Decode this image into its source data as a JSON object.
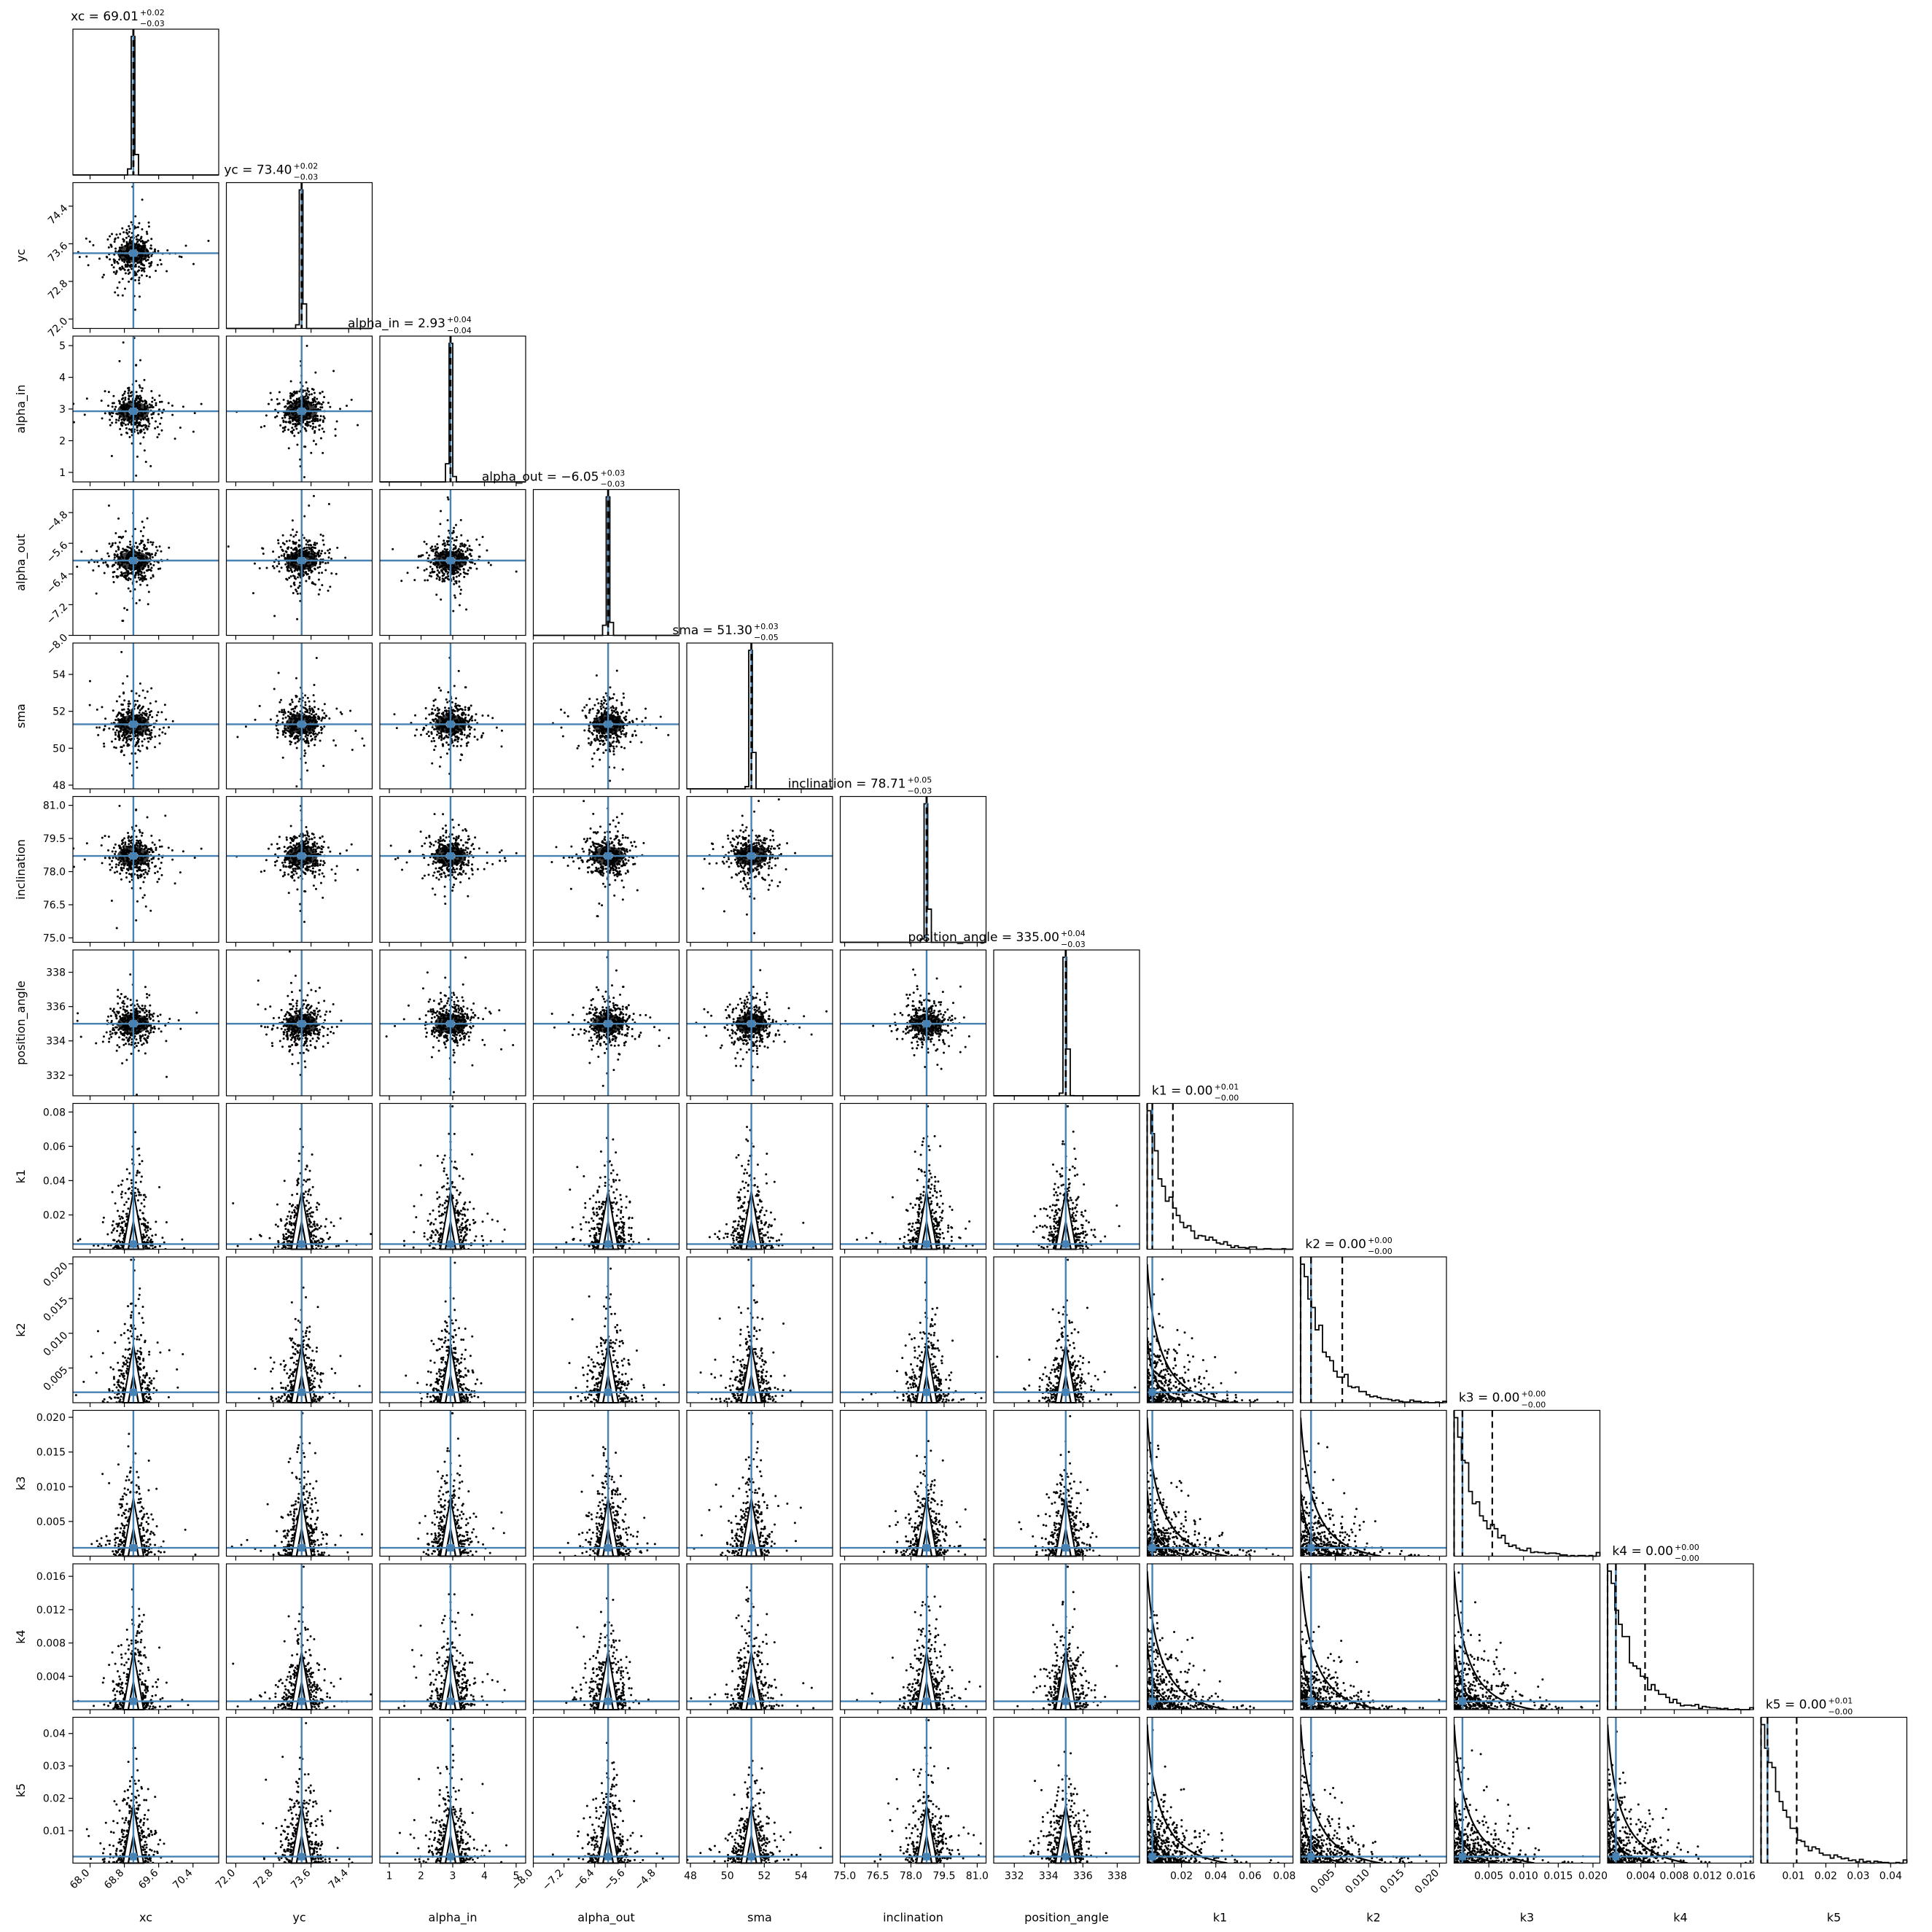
{
  "chart_data": {
    "type": "corner",
    "parameters": [
      {
        "label": "xc",
        "median": "69.01",
        "plus": "+0.02",
        "minus": "−0.03",
        "truth": 69.01,
        "range": [
          67.6,
          71.0
        ],
        "ticks": [
          "68.0",
          "68.8",
          "69.6",
          "70.4"
        ],
        "tick_values": [
          68.0,
          68.8,
          69.6,
          70.4
        ],
        "rotate": true
      },
      {
        "label": "yc",
        "median": "73.40",
        "plus": "+0.02",
        "minus": "−0.03",
        "truth": 73.4,
        "range": [
          71.8,
          74.9
        ],
        "ticks": [
          "72.0",
          "72.8",
          "73.6",
          "74.4"
        ],
        "tick_values": [
          72.0,
          72.8,
          73.6,
          74.4
        ],
        "rotate": true
      },
      {
        "label": "alpha_in",
        "median": "2.93",
        "plus": "+0.04",
        "minus": "−0.04",
        "truth": 2.93,
        "range": [
          0.7,
          5.3
        ],
        "ticks": [
          "1",
          "2",
          "3",
          "4",
          "5"
        ],
        "tick_values": [
          1,
          2,
          3,
          4,
          5
        ],
        "rotate": false
      },
      {
        "label": "alpha_out",
        "median": "−6.05",
        "plus": "+0.03",
        "minus": "−0.03",
        "truth": -6.05,
        "range": [
          -8.0,
          -4.2
        ],
        "ticks": [
          "−8.0",
          "−7.2",
          "−6.4",
          "−5.6",
          "−4.8"
        ],
        "tick_values": [
          -8.0,
          -7.2,
          -6.4,
          -5.6,
          -4.8
        ],
        "rotate": true
      },
      {
        "label": "sma",
        "median": "51.30",
        "plus": "+0.03",
        "minus": "−0.05",
        "truth": 51.3,
        "range": [
          47.8,
          55.7
        ],
        "ticks": [
          "48",
          "50",
          "52",
          "54"
        ],
        "tick_values": [
          48,
          50,
          52,
          54
        ],
        "rotate": false
      },
      {
        "label": "inclination",
        "median": "78.71",
        "plus": "+0.05",
        "minus": "−0.03",
        "truth": 78.71,
        "range": [
          74.8,
          81.4
        ],
        "ticks": [
          "75.0",
          "76.5",
          "78.0",
          "79.5",
          "81.0"
        ],
        "tick_values": [
          75.0,
          76.5,
          78.0,
          79.5,
          81.0
        ],
        "rotate": false
      },
      {
        "label": "position_angle",
        "median": "335.00",
        "plus": "+0.04",
        "minus": "−0.03",
        "truth": 335.0,
        "range": [
          330.8,
          339.3
        ],
        "ticks": [
          "332",
          "334",
          "336",
          "338"
        ],
        "tick_values": [
          332,
          334,
          336,
          338
        ],
        "rotate": false
      },
      {
        "label": "k1",
        "median": "0.00",
        "plus": "+0.01",
        "minus": "−0.00",
        "truth": 0.003,
        "q84": 0.015,
        "range": [
          0.0,
          0.085
        ],
        "ticks": [
          "0.02",
          "0.04",
          "0.06",
          "0.08"
        ],
        "tick_values": [
          0.02,
          0.04,
          0.06,
          0.08
        ],
        "rotate": false
      },
      {
        "label": "k2",
        "median": "0.00",
        "plus": "+0.00",
        "minus": "−0.00",
        "truth": 0.0015,
        "q84": 0.006,
        "range": [
          0.0,
          0.021
        ],
        "ticks": [
          "0.005",
          "0.010",
          "0.015",
          "0.020"
        ],
        "tick_values": [
          0.005,
          0.01,
          0.015,
          0.02
        ],
        "rotate": true
      },
      {
        "label": "k3",
        "median": "0.00",
        "plus": "+0.00",
        "minus": "−0.00",
        "truth": 0.0012,
        "q84": 0.0055,
        "range": [
          0.0,
          0.021
        ],
        "ticks": [
          "0.005",
          "0.010",
          "0.015",
          "0.020"
        ],
        "tick_values": [
          0.005,
          0.01,
          0.015,
          0.02
        ],
        "rotate": false
      },
      {
        "label": "k4",
        "median": "0.00",
        "plus": "+0.00",
        "minus": "−0.00",
        "truth": 0.001,
        "q84": 0.0045,
        "range": [
          0.0,
          0.0175
        ],
        "ticks": [
          "0.004",
          "0.008",
          "0.012",
          "0.016"
        ],
        "tick_values": [
          0.004,
          0.008,
          0.012,
          0.016
        ],
        "rotate": false
      },
      {
        "label": "k5",
        "median": "0.00",
        "plus": "+0.01",
        "minus": "−0.00",
        "truth": 0.002,
        "q84": 0.011,
        "range": [
          0.0,
          0.045
        ],
        "ticks": [
          "0.01",
          "0.02",
          "0.03",
          "0.04"
        ],
        "tick_values": [
          0.01,
          0.02,
          0.03,
          0.04
        ],
        "rotate": false
      }
    ],
    "truth_color": "#4682b4",
    "sample_color": "#000000"
  }
}
